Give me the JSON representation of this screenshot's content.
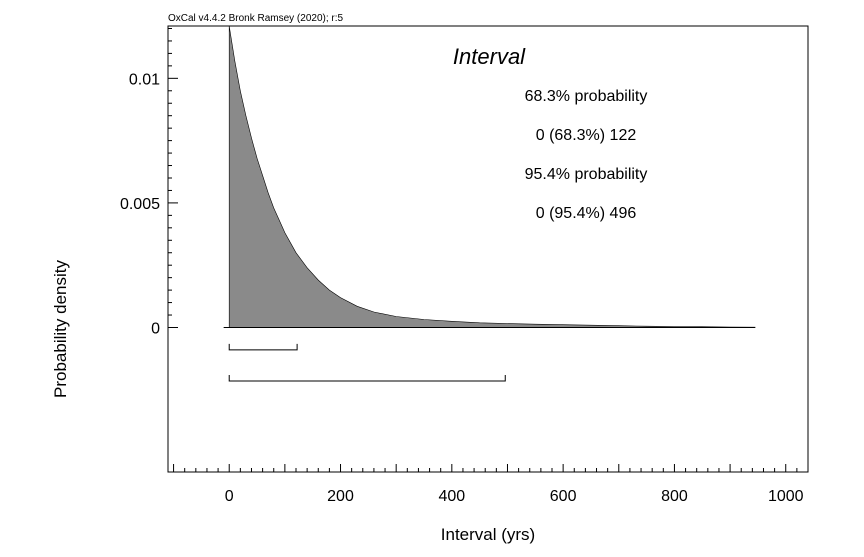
{
  "header": {
    "version_text": "OxCal v4.4.2 Bronk Ramsey (2020); r:5"
  },
  "chart_data": {
    "type": "area",
    "title": "Interval",
    "xlabel": "Interval (yrs)",
    "ylabel": "Probability density",
    "xlim": [
      -110,
      1040
    ],
    "ylim": [
      -0.0058,
      0.0121
    ],
    "x_ticks": [
      0,
      200,
      400,
      600,
      800,
      1000
    ],
    "y_ticks": [
      0,
      0.005,
      0.01
    ],
    "x_tick_labels": [
      "0",
      "200",
      "400",
      "600",
      "800",
      "1000"
    ],
    "y_tick_labels": [
      "0",
      "0.005",
      "0.01"
    ],
    "summary": {
      "p68_label": "68.3% probability",
      "p68_range": "0 (68.3%) 122",
      "p95_label": "95.4% probability",
      "p95_range": "0 (95.4%) 496"
    },
    "ranges": [
      {
        "level": 68.3,
        "from": 0,
        "to": 122
      },
      {
        "level": 95.4,
        "from": 0,
        "to": 496
      }
    ],
    "series": [
      {
        "x": [
          0,
          10,
          20,
          30,
          40,
          50,
          60,
          70,
          80,
          90,
          100,
          120,
          140,
          160,
          180,
          200,
          230,
          260,
          300,
          350,
          400,
          450,
          500,
          550,
          600,
          650,
          700,
          750,
          800,
          850,
          900,
          945
        ],
        "values": [
          0.0121,
          0.0107,
          0.0095,
          0.0085,
          0.0076,
          0.0068,
          0.0061,
          0.0054,
          0.0048,
          0.0043,
          0.0038,
          0.003,
          0.0024,
          0.0019,
          0.0015,
          0.0012,
          0.00085,
          0.00062,
          0.00044,
          0.00032,
          0.00025,
          0.00019,
          0.00016,
          0.00013,
          0.00011,
          9e-05,
          7e-05,
          5e-05,
          4e-05,
          3e-05,
          2e-05,
          1e-05
        ]
      }
    ],
    "fill_color": "#8a8a8a",
    "line_color": "#000000",
    "grid": false,
    "legend": "none"
  }
}
